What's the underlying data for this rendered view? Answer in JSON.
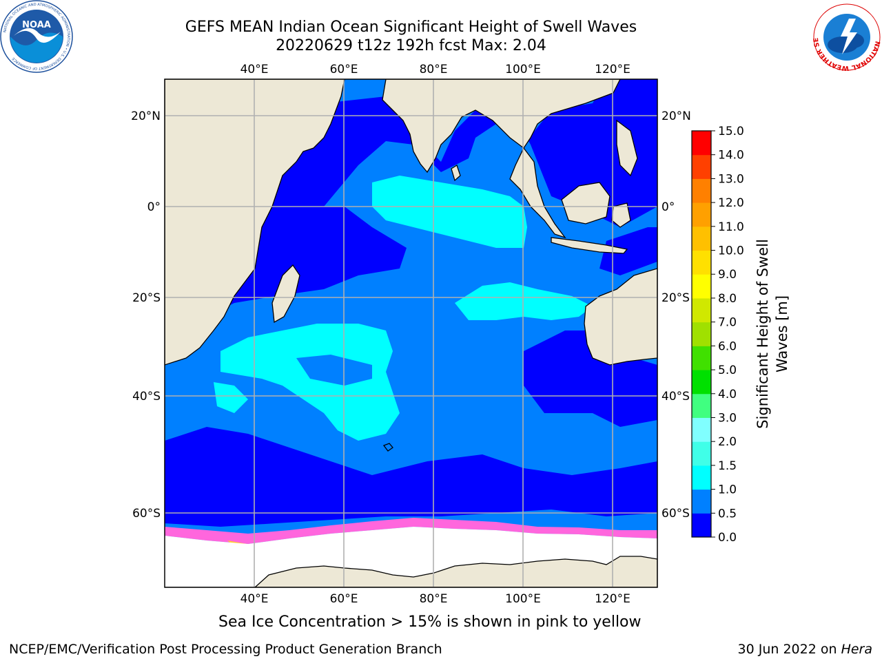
{
  "title": {
    "line1": "GEFS MEAN Indian Ocean Significant Height of Swell Waves",
    "line2": "20220629 t12z 192h fcst   Max: 2.04"
  },
  "logos": {
    "noaa": {
      "text": "NOAA",
      "ring_text": "NATIONAL OCEANIC AND ATMOSPHERIC ADMINISTRATION • U.S. DEPARTMENT OF COMMERCE"
    },
    "nws": {
      "ring_text": "NATIONAL WEATHER SERVICE"
    }
  },
  "map": {
    "lon_labels": [
      "40°E",
      "60°E",
      "80°E",
      "100°E",
      "120°E"
    ],
    "lat_labels": [
      "20°N",
      "0°",
      "20°S",
      "40°S",
      "60°S"
    ]
  },
  "colorbar": {
    "label_line1": "Significant Height of Swell",
    "label_line2": "Waves [m]",
    "ticks": [
      "0.0",
      "0.5",
      "1.0",
      "1.5",
      "2.0",
      "3.0",
      "4.0",
      "5.0",
      "6.0",
      "7.0",
      "8.0",
      "9.0",
      "10.0",
      "11.0",
      "12.0",
      "13.0",
      "14.0",
      "15.0"
    ],
    "colors": [
      "#0000ff",
      "#0080ff",
      "#00ffff",
      "#40ffe8",
      "#80ffff",
      "#40ff80",
      "#00e000",
      "#40e000",
      "#a0e000",
      "#d0e800",
      "#ffff00",
      "#ffe000",
      "#ffc000",
      "#ffa000",
      "#ff8000",
      "#ff4000",
      "#ff0000"
    ]
  },
  "colors": {
    "land": "#ede8d6",
    "swell_low": "#0000ff",
    "swell_mid": "#0080ff",
    "swell_high": "#00ffff",
    "ice": "#ff66dd"
  },
  "caption": "Sea Ice Concentration > 15% is shown in pink to yellow",
  "footer": {
    "left": "NCEP/EMC/Verification Post Processing Product Generation Branch",
    "right_prefix": "30 Jun 2022 on ",
    "right_em": "Hera"
  }
}
